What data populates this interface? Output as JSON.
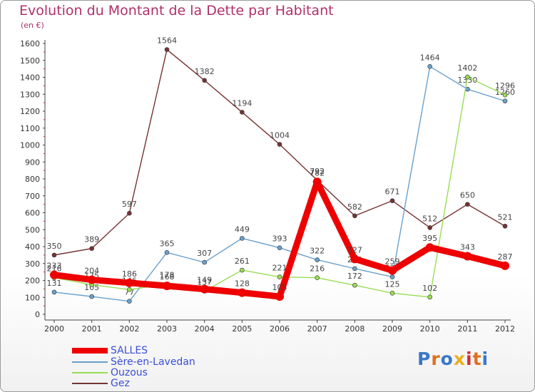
{
  "title": "Evolution du Montant de la Dette par Habitant",
  "unit_label": "(en €)",
  "logo_text": "Proxiti",
  "chart_data": {
    "type": "line",
    "x": [
      2000,
      2001,
      2002,
      2003,
      2004,
      2005,
      2006,
      2007,
      2008,
      2009,
      2010,
      2011,
      2012
    ],
    "ylim": [
      0,
      1600
    ],
    "yticks": [
      0,
      100,
      200,
      300,
      400,
      500,
      600,
      700,
      800,
      900,
      1000,
      1100,
      1200,
      1300,
      1400,
      1500,
      1600
    ],
    "grid": false,
    "legend_position": "bottom-left",
    "series": [
      {
        "name": "SALLES",
        "color": "#ee0000",
        "values": [
          233,
          204,
          186,
          168,
          149,
          128,
          105,
          782,
          327,
          259,
          395,
          343,
          287
        ]
      },
      {
        "name": "Sère-en-Lavedan",
        "color": "#6aa0cc",
        "values": [
          131,
          105,
          77,
          365,
          307,
          449,
          393,
          322,
          270,
          221,
          1464,
          1330,
          1260
        ]
      },
      {
        "name": "Ouzous",
        "color": "#99dd55",
        "values": [
          216,
          175,
          146,
          178,
          137,
          261,
          221,
          216,
          172,
          125,
          102,
          1402,
          1296
        ]
      },
      {
        "name": "Gez",
        "color": "#773333",
        "values": [
          350,
          389,
          597,
          1564,
          1382,
          1194,
          1004,
          792,
          582,
          671,
          512,
          650,
          521
        ]
      }
    ]
  }
}
